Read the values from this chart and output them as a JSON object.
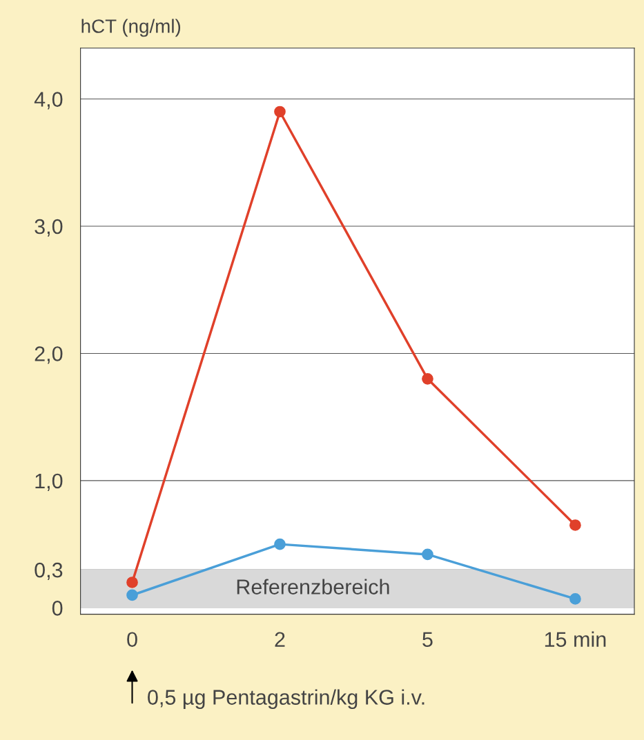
{
  "chart_data": {
    "type": "line",
    "ylabel": "hCT (ng/ml)",
    "categories": [
      "0",
      "2",
      "5",
      "15 min"
    ],
    "series": [
      {
        "color": "#e0402a",
        "values": [
          0.2,
          3.9,
          1.8,
          0.65
        ]
      },
      {
        "color": "#4a9fd8",
        "values": [
          0.1,
          0.5,
          0.42,
          0.07
        ]
      }
    ],
    "ylim": [
      -0.05,
      4.4
    ],
    "yticks": [
      0,
      {
        "value": 0.3,
        "label": "0,3"
      },
      {
        "value": 1.0,
        "label": "1,0"
      },
      {
        "value": 2.0,
        "label": "2,0"
      },
      {
        "value": 3.0,
        "label": "3,0"
      },
      {
        "value": 4.0,
        "label": "4,0"
      }
    ],
    "bands": [
      {
        "axis": "y",
        "from": 0,
        "to": 0.3,
        "label": "Referenzbereich",
        "color": "#d9d9d9"
      }
    ],
    "annotations": [
      "0,5 µg Pentagastrin/kg KG i.v."
    ],
    "grid": "y",
    "marker": "circle",
    "line_style": "solid"
  }
}
